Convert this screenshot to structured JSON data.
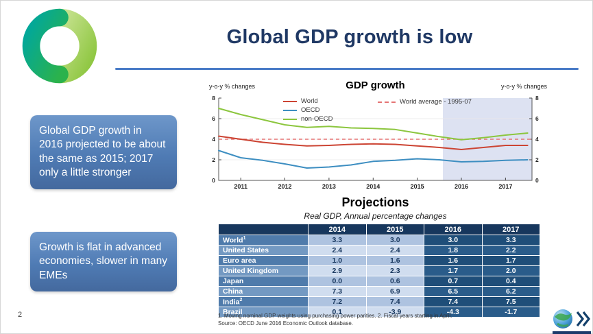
{
  "page": {
    "title": "Global GDP growth is low",
    "page_number": "2"
  },
  "callouts": [
    {
      "text": "Global GDP growth in 2016 projected to be about the same as 2015; 2017 only a little stronger"
    },
    {
      "text": "Growth is flat in advanced economies, slower in many EMEs"
    }
  ],
  "chart_data": {
    "type": "line",
    "title": "GDP growth",
    "left_axis_label": "y-o-y % changes",
    "right_axis_label": "y-o-y % changes",
    "ylim": [
      0,
      8
    ],
    "yticks": [
      0,
      2,
      4,
      6,
      8
    ],
    "xlim": [
      2010.5,
      2017.6
    ],
    "xticks": [
      2011,
      2012,
      2013,
      2014,
      2015,
      2016,
      2017
    ],
    "forecast_start": 2015.58,
    "forecast_shade_color": "#dde2f2",
    "grid": "horizontal-light",
    "legend_position": "top-left-inside",
    "reference_line": {
      "label": "World average - 1995-07",
      "value": 4.0,
      "color": "#e57373",
      "style": "dashed"
    },
    "x": [
      2010.5,
      2011,
      2011.5,
      2012,
      2012.5,
      2013,
      2013.5,
      2014,
      2014.5,
      2015,
      2015.5,
      2016,
      2016.5,
      2017,
      2017.5
    ],
    "series": [
      {
        "name": "World",
        "color": "#cc4433",
        "values": [
          4.3,
          4.0,
          3.7,
          3.5,
          3.35,
          3.4,
          3.5,
          3.55,
          3.5,
          3.35,
          3.2,
          3.0,
          3.2,
          3.4,
          3.4
        ]
      },
      {
        "name": "OECD",
        "color": "#3d8ec1",
        "values": [
          2.9,
          2.2,
          1.95,
          1.6,
          1.2,
          1.3,
          1.5,
          1.85,
          1.95,
          2.1,
          2.0,
          1.8,
          1.85,
          1.95,
          2.0
        ]
      },
      {
        "name": "non-OECD",
        "color": "#8cc63e",
        "values": [
          7.0,
          6.4,
          5.9,
          5.4,
          5.15,
          5.25,
          5.1,
          5.05,
          4.95,
          4.6,
          4.25,
          3.95,
          4.15,
          4.4,
          4.6
        ]
      }
    ]
  },
  "projections": {
    "heading": "Projections",
    "subtitle": "Real GDP, Annual percentage changes",
    "columns": [
      "2014",
      "2015",
      "2016",
      "2017"
    ],
    "rows": [
      {
        "label": "World",
        "sup": "1",
        "values": [
          "3.3",
          "3.0",
          "3.0",
          "3.3"
        ]
      },
      {
        "label": "United States",
        "sup": "",
        "values": [
          "2.4",
          "2.4",
          "1.8",
          "2.2"
        ]
      },
      {
        "label": "Euro area",
        "sup": "",
        "values": [
          "1.0",
          "1.6",
          "1.6",
          "1.7"
        ]
      },
      {
        "label": "United Kingdom",
        "sup": "",
        "values": [
          "2.9",
          "2.3",
          "1.7",
          "2.0"
        ]
      },
      {
        "label": "Japan",
        "sup": "",
        "values": [
          "0.0",
          "0.6",
          "0.7",
          "0.4"
        ]
      },
      {
        "label": "China",
        "sup": "",
        "values": [
          "7.3",
          "6.9",
          "6.5",
          "6.2"
        ]
      },
      {
        "label": "India",
        "sup": "2",
        "values": [
          "7.2",
          "7.4",
          "7.4",
          "7.5"
        ]
      },
      {
        "label": "Brazil",
        "sup": "",
        "values": [
          "0.1",
          "-3.9",
          "-4.3",
          "-1.7"
        ]
      }
    ],
    "footnote": "1. Moving nominal GDP weights using purchasing power parities.  2. Fiscal years starting in April.",
    "source": "Source: OECD June 2016 Economic Outlook database."
  }
}
